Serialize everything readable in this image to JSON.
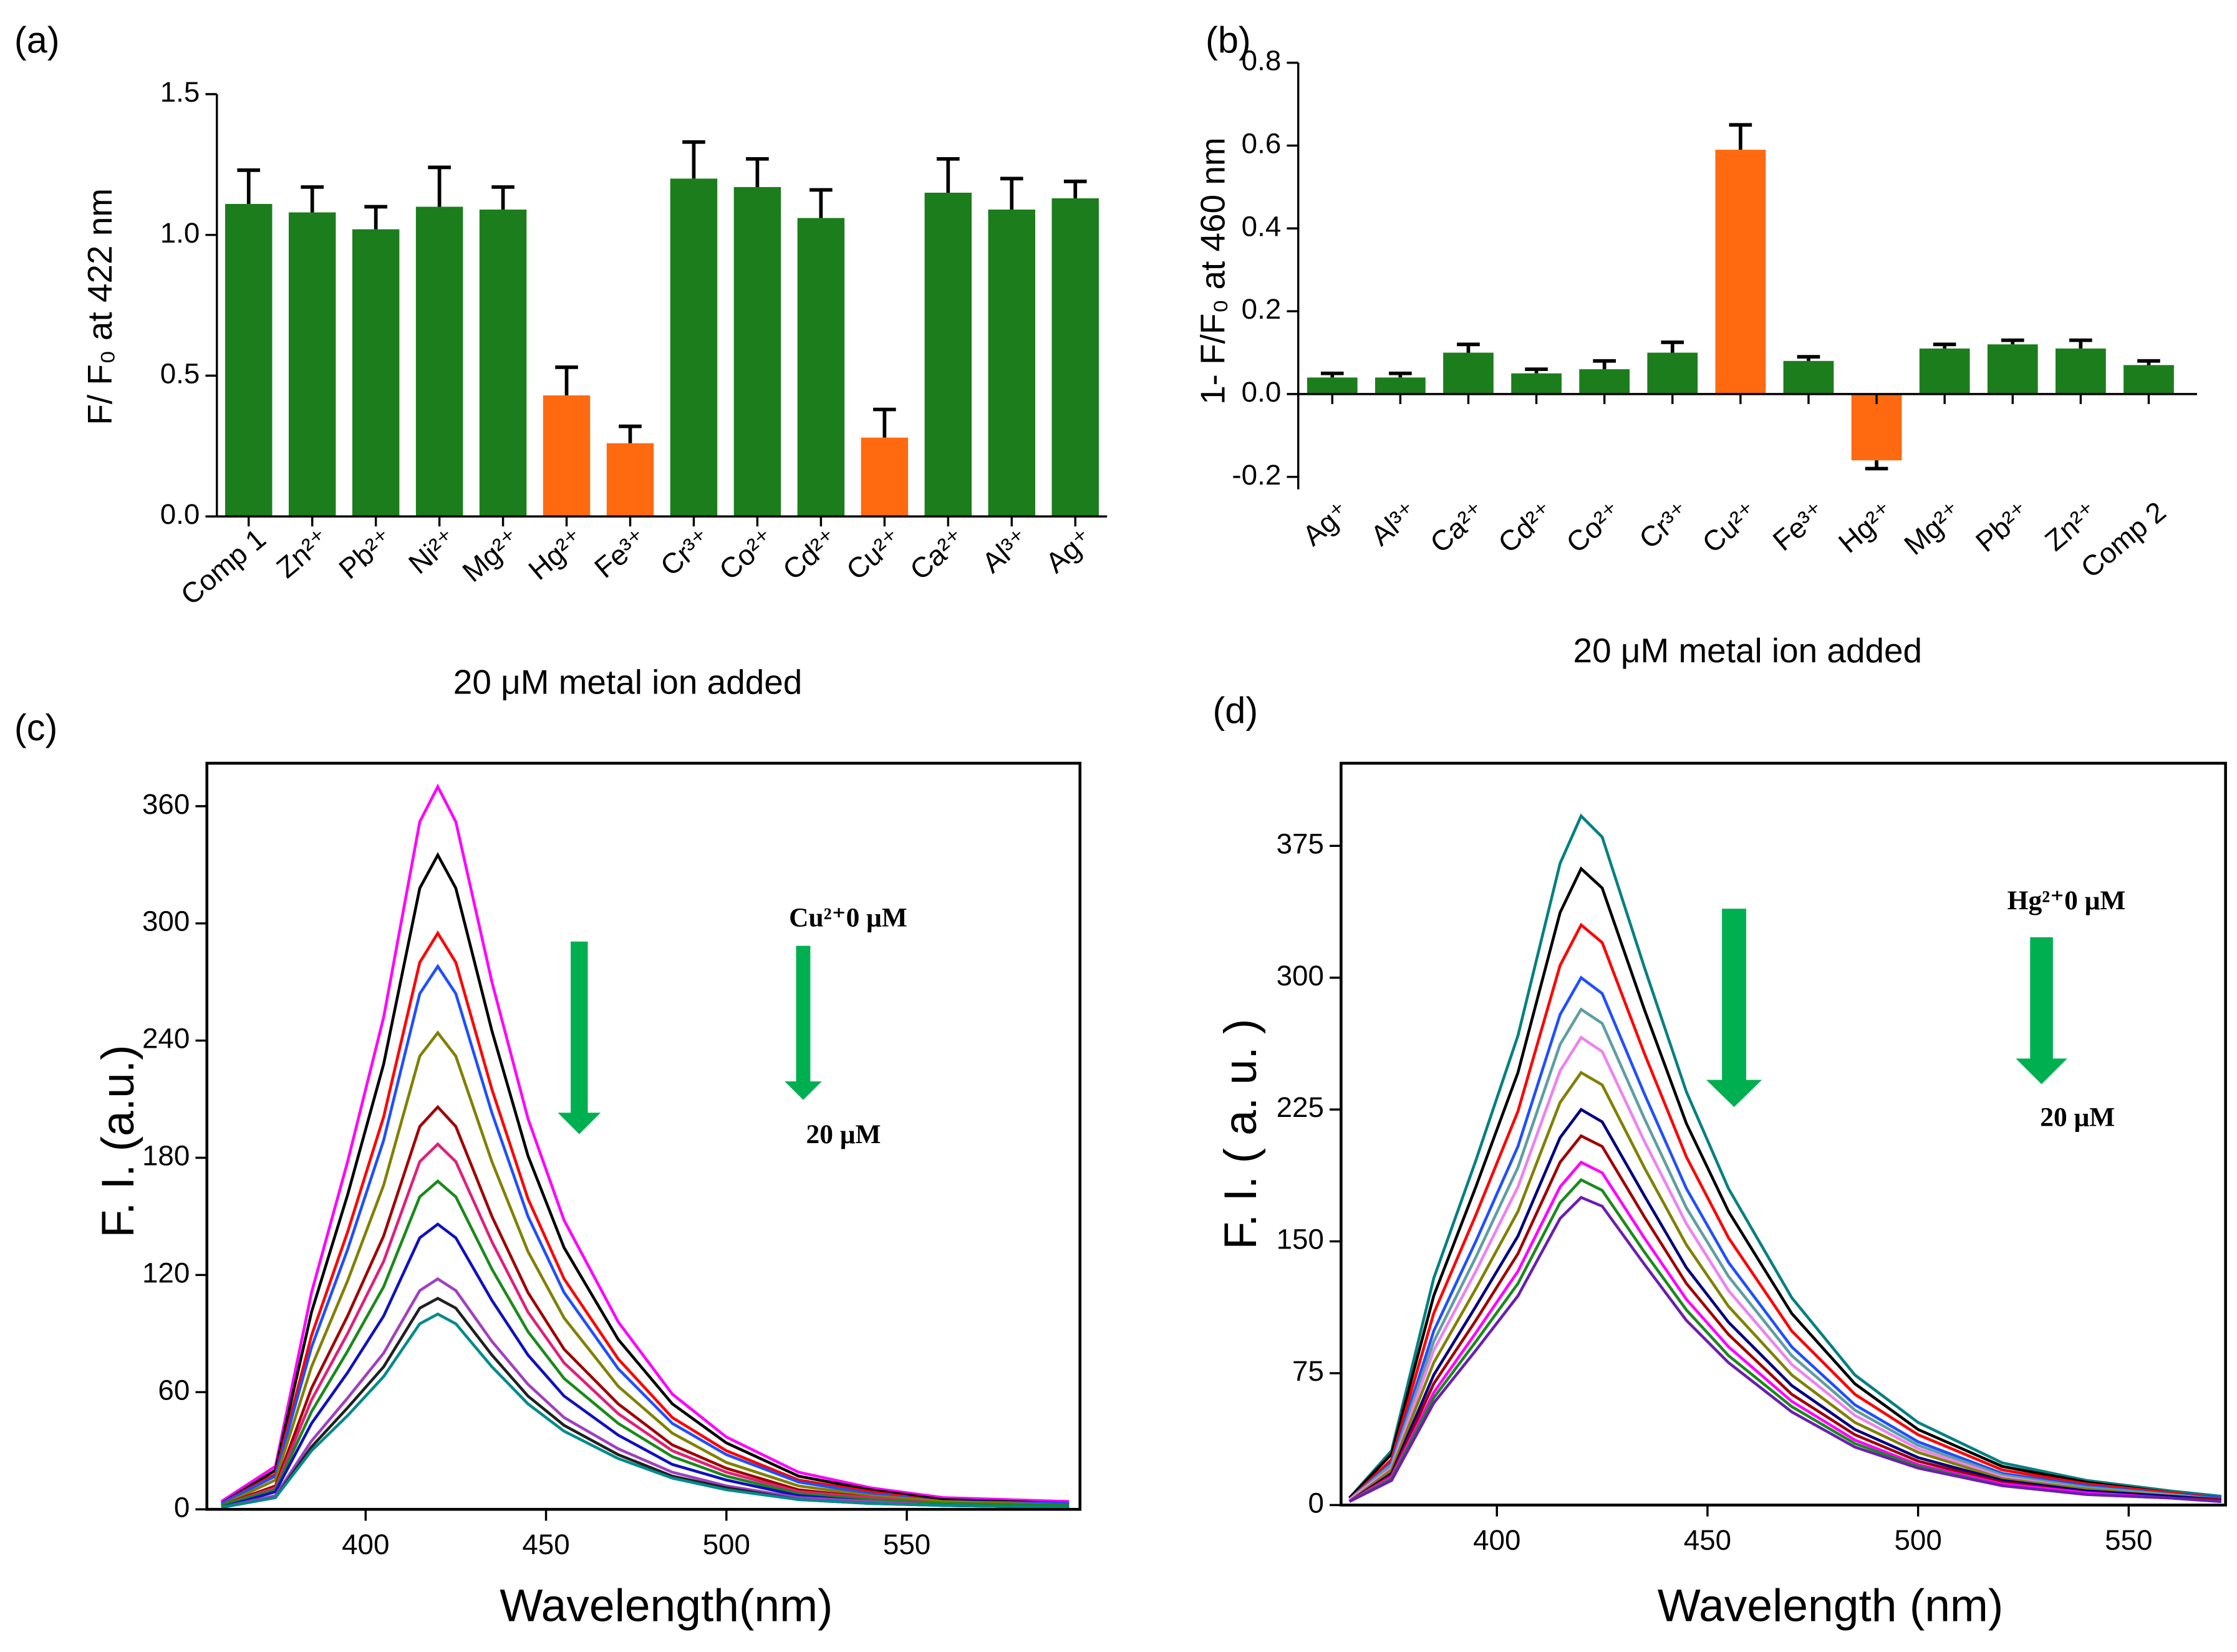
{
  "chart_data": [
    {
      "type": "bar",
      "panel_label": "(a)",
      "ylabel": "F/ F₀ at 422 nm",
      "xlabel": "20 μM metal ion added",
      "categories": [
        "Comp 1",
        "Zn²⁺",
        "Pb²⁺",
        "Ni²⁺",
        "Mg²⁺",
        "Hg²⁺",
        "Fe³⁺",
        "Cr³⁺",
        "Co²⁺",
        "Cd²⁺",
        "Cu²⁺",
        "Ca²⁺",
        "Al³⁺",
        "Ag⁺"
      ],
      "values": [
        1.11,
        1.08,
        1.02,
        1.1,
        1.09,
        0.43,
        0.26,
        1.2,
        1.17,
        1.06,
        0.28,
        1.15,
        1.09,
        1.13
      ],
      "errors": [
        0.12,
        0.09,
        0.08,
        0.14,
        0.08,
        0.1,
        0.06,
        0.13,
        0.1,
        0.1,
        0.1,
        0.12,
        0.11,
        0.06
      ],
      "colors": [
        "#1b7d1b",
        "#1b7d1b",
        "#1b7d1b",
        "#1b7d1b",
        "#1b7d1b",
        "#ff6a10",
        "#ff6a10",
        "#1b7d1b",
        "#1b7d1b",
        "#1b7d1b",
        "#ff6a10",
        "#1b7d1b",
        "#1b7d1b",
        "#1b7d1b"
      ],
      "ylim": [
        0,
        1.5
      ],
      "yticks": [
        {
          "value": 0,
          "label": "0.0"
        },
        {
          "value": 0.5,
          "label": "0.5"
        },
        {
          "value": 1,
          "label": "1.0"
        },
        1.5
      ]
    },
    {
      "type": "bar",
      "panel_label": "(b)",
      "ylabel": "1- F/F₀ at 460 nm",
      "xlabel": "20 μM metal ion added",
      "categories": [
        "Ag⁺",
        "Al³⁺",
        "Ca²⁺",
        "Cd²⁺",
        "Co²⁺",
        "Cr³⁺",
        "Cu²⁺",
        "Fe³⁺",
        "Hg²⁺",
        "Mg²⁺",
        "Pb²⁺",
        "Zn²⁺",
        "Comp 2"
      ],
      "values": [
        0.04,
        0.04,
        0.1,
        0.05,
        0.06,
        0.1,
        0.59,
        0.08,
        -0.16,
        0.11,
        0.12,
        0.11,
        0.07
      ],
      "errors": [
        0.01,
        0.01,
        0.02,
        0.01,
        0.02,
        0.025,
        0.06,
        0.01,
        0.02,
        0.01,
        0.01,
        0.02,
        0.01
      ],
      "colors": [
        "#1b7d1b",
        "#1b7d1b",
        "#1b7d1b",
        "#1b7d1b",
        "#1b7d1b",
        "#1b7d1b",
        "#ff6a10",
        "#1b7d1b",
        "#ff6a10",
        "#1b7d1b",
        "#1b7d1b",
        "#1b7d1b",
        "#1b7d1b"
      ],
      "ylim": [
        -0.23,
        0.8
      ],
      "yticks": [
        -0.2,
        {
          "value": 0,
          "label": "0.0"
        },
        0.2,
        0.4,
        0.6,
        0.8
      ]
    },
    {
      "type": "line",
      "panel_label": "(c)",
      "ylabel": "F. I. (a.u.)",
      "xlabel": "Wavelength(nm)",
      "annotations": [
        "Cu²⁺0 μM",
        "20 μM"
      ],
      "x": [
        360,
        375,
        385,
        395,
        405,
        415,
        420,
        425,
        435,
        445,
        455,
        470,
        485,
        500,
        520,
        540,
        560,
        595
      ],
      "xlim": [
        356,
        598
      ],
      "xticks": [
        400,
        450,
        500,
        550
      ],
      "ylim": [
        0,
        382
      ],
      "yticks": [
        0,
        60,
        120,
        180,
        240,
        300,
        360
      ],
      "series": [
        {
          "color": "#ff00ff",
          "values": [
            4,
            22,
            111,
            178,
            252,
            352,
            370,
            352,
            270,
            200,
            148,
            96,
            59,
            37,
            19,
            11,
            6,
            4
          ]
        },
        {
          "color": "#000000",
          "values": [
            3,
            20,
            101,
            161,
            228,
            318,
            335,
            318,
            245,
            181,
            134,
            87,
            54,
            34,
            17,
            10,
            5,
            3
          ]
        },
        {
          "color": "#ff0000",
          "values": [
            3,
            18,
            89,
            142,
            201,
            280,
            295,
            280,
            215,
            159,
            118,
            77,
            47,
            30,
            15,
            9,
            4,
            3
          ]
        },
        {
          "color": "#1f4fff",
          "values": [
            3,
            17,
            83,
            133,
            189,
            264,
            278,
            264,
            203,
            150,
            111,
            72,
            44,
            28,
            14,
            8,
            4,
            3
          ]
        },
        {
          "color": "#808000",
          "values": [
            2,
            15,
            73,
            117,
            166,
            232,
            244,
            232,
            178,
            132,
            98,
            63,
            39,
            24,
            12,
            7,
            4,
            2
          ]
        },
        {
          "color": "#a00000",
          "values": [
            2,
            12,
            62,
            99,
            140,
            196,
            206,
            196,
            150,
            111,
            82,
            54,
            33,
            21,
            10,
            6,
            3,
            2
          ]
        },
        {
          "color": "#e0207a",
          "values": [
            2,
            11,
            56,
            90,
            127,
            178,
            187,
            178,
            137,
            101,
            75,
            49,
            30,
            19,
            9,
            6,
            3,
            2
          ]
        },
        {
          "color": "#1a8a1a",
          "values": [
            2,
            10,
            50,
            81,
            114,
            160,
            168,
            160,
            123,
            91,
            67,
            44,
            27,
            17,
            8,
            5,
            3,
            2
          ]
        },
        {
          "color": "#1010c0",
          "values": [
            1,
            9,
            44,
            70,
            99,
            139,
            146,
            139,
            107,
            79,
            58,
            38,
            23,
            15,
            7,
            4,
            2,
            1
          ]
        },
        {
          "color": "#a040c0",
          "values": [
            1,
            7,
            35,
            57,
            80,
            112,
            118,
            112,
            86,
            64,
            47,
            31,
            19,
            12,
            6,
            4,
            2,
            1
          ]
        },
        {
          "color": "#202020",
          "values": [
            1,
            6,
            32,
            52,
            73,
            103,
            108,
            103,
            79,
            58,
            43,
            28,
            17,
            11,
            5,
            3,
            2,
            1
          ]
        },
        {
          "color": "#008b8b",
          "values": [
            1,
            6,
            30,
            48,
            68,
            95,
            100,
            95,
            73,
            54,
            40,
            26,
            16,
            10,
            5,
            3,
            2,
            1
          ]
        }
      ]
    },
    {
      "type": "line",
      "panel_label": "(d)",
      "ylabel": "F. I. ( a. u. )",
      "xlabel": "Wavelength (nm)",
      "annotations": [
        "Hg²⁺0 μM",
        "20 μM"
      ],
      "x": [
        365,
        375,
        385,
        395,
        405,
        415,
        420,
        425,
        435,
        445,
        455,
        470,
        485,
        500,
        520,
        540,
        560,
        572
      ],
      "xlim": [
        363,
        573
      ],
      "xticks": [
        400,
        450,
        500,
        550
      ],
      "ylim": [
        0,
        422
      ],
      "yticks": [
        0,
        75,
        150,
        225,
        300,
        375
      ],
      "series": [
        {
          "color": "#008080",
          "values": [
            4,
            31,
            129,
            196,
            267,
            365,
            392,
            380,
            306,
            235,
            180,
            118,
            74,
            47,
            24,
            14,
            8,
            5
          ]
        },
        {
          "color": "#000000",
          "values": [
            4,
            29,
            119,
            181,
            246,
            337,
            362,
            351,
            282,
            217,
            167,
            109,
            69,
            43,
            22,
            13,
            7,
            4
          ]
        },
        {
          "color": "#ff0000",
          "values": [
            3,
            26,
            109,
            165,
            224,
            307,
            330,
            320,
            257,
            198,
            152,
            99,
            63,
            40,
            20,
            12,
            7,
            4
          ]
        },
        {
          "color": "#1f4fff",
          "values": [
            3,
            24,
            99,
            150,
            204,
            279,
            300,
            291,
            234,
            180,
            138,
            90,
            57,
            36,
            18,
            11,
            6,
            4
          ]
        },
        {
          "color": "#5f9ea0",
          "values": [
            3,
            23,
            93,
            141,
            192,
            262,
            282,
            274,
            220,
            169,
            130,
            85,
            54,
            34,
            17,
            10,
            6,
            3
          ]
        },
        {
          "color": "#ee82ee",
          "values": [
            3,
            21,
            88,
            133,
            181,
            247,
            266,
            258,
            207,
            160,
            122,
            80,
            51,
            32,
            16,
            9,
            5,
            3
          ]
        },
        {
          "color": "#808000",
          "values": [
            2,
            20,
            81,
            123,
            167,
            229,
            246,
            239,
            192,
            148,
            113,
            74,
            47,
            30,
            15,
            9,
            5,
            3
          ]
        },
        {
          "color": "#000080",
          "values": [
            2,
            18,
            74,
            113,
            153,
            209,
            225,
            218,
            176,
            135,
            104,
            68,
            43,
            27,
            14,
            8,
            5,
            3
          ]
        },
        {
          "color": "#a00000",
          "values": [
            2,
            17,
            69,
            105,
            143,
            195,
            210,
            204,
            164,
            126,
            97,
            63,
            40,
            25,
            13,
            7,
            4,
            3
          ]
        },
        {
          "color": "#ff00ff",
          "values": [
            2,
            16,
            64,
            98,
            133,
            181,
            195,
            189,
            152,
            117,
            90,
            59,
            37,
            23,
            12,
            7,
            4,
            2
          ]
        },
        {
          "color": "#1a8a1a",
          "values": [
            2,
            15,
            61,
            93,
            126,
            172,
            185,
            179,
            144,
            111,
            85,
            56,
            35,
            22,
            11,
            6,
            4,
            2
          ]
        },
        {
          "color": "#6a1fb0",
          "values": [
            2,
            14,
            58,
            88,
            119,
            163,
            175,
            170,
            137,
            105,
            81,
            53,
            33,
            21,
            11,
            6,
            4,
            2
          ]
        }
      ]
    }
  ]
}
